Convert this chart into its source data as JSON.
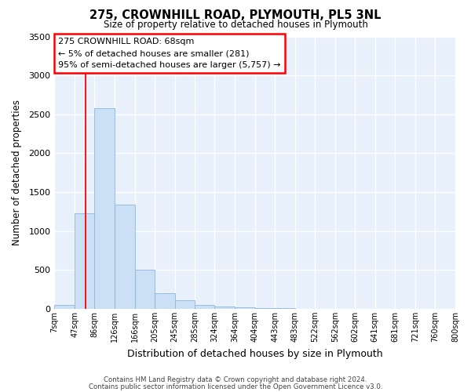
{
  "title": "275, CROWNHILL ROAD, PLYMOUTH, PL5 3NL",
  "subtitle": "Size of property relative to detached houses in Plymouth",
  "xlabel": "Distribution of detached houses by size in Plymouth",
  "ylabel": "Number of detached properties",
  "bar_color": "#cce0f5",
  "bar_edge_color": "#89b8df",
  "background_color": "#e8f0fb",
  "grid_color": "#ffffff",
  "red_line_x": 68,
  "annotation_title": "275 CROWNHILL ROAD: 68sqm",
  "annotation_line1": "← 5% of detached houses are smaller (281)",
  "annotation_line2": "95% of semi-detached houses are larger (5,757) →",
  "bin_edges": [
    7,
    47,
    86,
    126,
    166,
    205,
    245,
    285,
    324,
    364,
    404,
    443,
    483,
    522,
    562,
    602,
    641,
    681,
    721,
    760,
    800
  ],
  "bin_labels": [
    "7sqm",
    "47sqm",
    "86sqm",
    "126sqm",
    "166sqm",
    "205sqm",
    "245sqm",
    "285sqm",
    "324sqm",
    "364sqm",
    "404sqm",
    "443sqm",
    "483sqm",
    "522sqm",
    "562sqm",
    "602sqm",
    "641sqm",
    "681sqm",
    "721sqm",
    "760sqm",
    "800sqm"
  ],
  "bar_heights": [
    50,
    1230,
    2580,
    1340,
    500,
    200,
    110,
    50,
    30,
    15,
    8,
    4,
    2,
    0,
    0,
    0,
    0,
    0,
    0,
    0
  ],
  "ylim": [
    0,
    3500
  ],
  "yticks": [
    0,
    500,
    1000,
    1500,
    2000,
    2500,
    3000,
    3500
  ],
  "footer1": "Contains HM Land Registry data © Crown copyright and database right 2024.",
  "footer2": "Contains public sector information licensed under the Open Government Licence v3.0."
}
